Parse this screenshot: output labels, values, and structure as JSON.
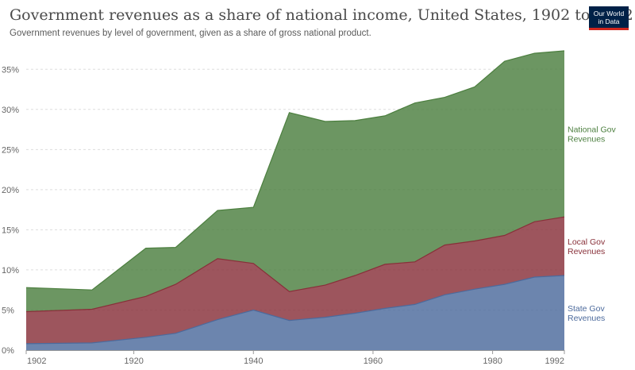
{
  "header": {
    "title": "Government revenues as a share of national income, United States, 1902 to 1992",
    "subtitle": "Government revenues by level of government, given as a share of gross national product."
  },
  "logo": {
    "line1": "Our World",
    "line2": "in Data"
  },
  "chart_data": {
    "type": "area",
    "stacked": true,
    "x": [
      1902,
      1913,
      1922,
      1927,
      1934,
      1940,
      1946,
      1952,
      1957,
      1962,
      1967,
      1972,
      1977,
      1982,
      1987,
      1992
    ],
    "series": [
      {
        "name": "State Gov Revenues",
        "label_lines": [
          "State Gov",
          "Revenues"
        ],
        "color": "#4c6a9c",
        "values": [
          0.8,
          0.9,
          1.6,
          2.1,
          3.8,
          5.0,
          3.7,
          4.1,
          4.6,
          5.2,
          5.7,
          6.9,
          7.6,
          8.2,
          9.1,
          9.3
        ]
      },
      {
        "name": "Local Gov Revenues",
        "label_lines": [
          "Local Gov",
          "Revenues"
        ],
        "color": "#883039",
        "values": [
          4.0,
          4.2,
          5.1,
          6.1,
          7.6,
          5.8,
          3.6,
          4.0,
          4.7,
          5.5,
          5.3,
          6.2,
          6.0,
          6.1,
          6.9,
          7.3
        ]
      },
      {
        "name": "National Gov Revenues",
        "label_lines": [
          "National Gov",
          "Revenues"
        ],
        "color": "#4c7f3f",
        "values": [
          3.0,
          2.4,
          6.0,
          4.6,
          6.0,
          7.0,
          22.3,
          20.4,
          19.3,
          18.5,
          19.8,
          18.4,
          19.2,
          21.7,
          21.0,
          20.7
        ]
      }
    ],
    "ylim": [
      0,
      37.5
    ],
    "xlim": [
      1902,
      1992
    ],
    "y_ticks": [
      0,
      5,
      10,
      15,
      20,
      25,
      30,
      35
    ],
    "y_tick_labels": [
      "0%",
      "5%",
      "10%",
      "15%",
      "20%",
      "25%",
      "30%",
      "35%"
    ],
    "x_ticks": [
      1902,
      1920,
      1940,
      1960,
      1980,
      1992
    ],
    "x_tick_labels": [
      "1902",
      "1920",
      "1940",
      "1960",
      "1980",
      "1992"
    ],
    "grid": true,
    "legend": "right"
  }
}
